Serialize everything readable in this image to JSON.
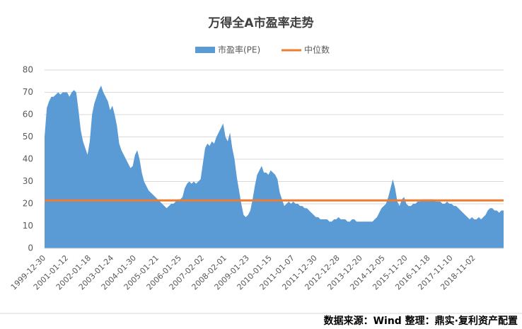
{
  "chart_data": {
    "type": "area",
    "title": "万得全A市盈率走势",
    "source": "数据来源：Wind  整理：鼎实·复利资产配置",
    "categories": [
      "1999-12-30",
      null,
      null,
      null,
      null,
      null,
      null,
      null,
      null,
      null,
      "2001-01-12",
      null,
      null,
      null,
      null,
      null,
      null,
      null,
      null,
      null,
      "2002-01-18",
      null,
      null,
      null,
      null,
      null,
      null,
      null,
      null,
      null,
      "2003-01-24",
      null,
      null,
      null,
      null,
      null,
      null,
      null,
      null,
      null,
      "2004-01-30",
      null,
      null,
      null,
      null,
      null,
      null,
      null,
      null,
      null,
      "2005-01-21",
      null,
      null,
      null,
      null,
      null,
      null,
      null,
      null,
      null,
      "2006-01-25",
      null,
      null,
      null,
      null,
      null,
      null,
      null,
      null,
      null,
      "2007-02-02",
      null,
      null,
      null,
      null,
      null,
      null,
      null,
      null,
      null,
      "2008-02-01",
      null,
      null,
      null,
      null,
      null,
      null,
      null,
      null,
      null,
      "2009-01-23",
      null,
      null,
      null,
      null,
      null,
      null,
      null,
      null,
      null,
      "2010-01-15",
      null,
      null,
      null,
      null,
      null,
      null,
      null,
      null,
      null,
      "2011-01-07",
      null,
      null,
      null,
      null,
      null,
      null,
      null,
      null,
      null,
      "2011-12-30",
      null,
      null,
      null,
      null,
      null,
      null,
      null,
      null,
      null,
      "2012-12-28",
      null,
      null,
      null,
      null,
      null,
      null,
      null,
      null,
      null,
      "2013-12-20",
      null,
      null,
      null,
      null,
      null,
      null,
      null,
      null,
      null,
      "2014-12-05",
      null,
      null,
      null,
      null,
      null,
      null,
      null,
      null,
      null,
      "2015-11-20",
      null,
      null,
      null,
      null,
      null,
      null,
      null,
      null,
      null,
      "2016-11-18",
      null,
      null,
      null,
      null,
      null,
      null,
      null,
      null,
      null,
      "2017-11-10",
      null,
      null,
      null,
      null,
      null,
      null,
      null,
      null,
      null,
      "2018-11-02",
      null,
      null,
      null,
      null,
      null,
      null,
      null,
      null,
      null,
      null,
      null,
      null,
      null
    ],
    "series": [
      {
        "name": "市盈率(PE)",
        "color": "#5b9bd5",
        "values": [
          50,
          63,
          66,
          68,
          68,
          69,
          70,
          69,
          70,
          70,
          70,
          68,
          70,
          71,
          70,
          62,
          53,
          48,
          45,
          42,
          48,
          60,
          65,
          68,
          71,
          73,
          70,
          68,
          66,
          62,
          64,
          60,
          55,
          47,
          44,
          42,
          40,
          38,
          36,
          37,
          42,
          44,
          40,
          34,
          30,
          28,
          26,
          25,
          24,
          23,
          22,
          21,
          20,
          19,
          18,
          19,
          20,
          20,
          21,
          22,
          22,
          23,
          27,
          29,
          30,
          29,
          30,
          29,
          30,
          31,
          38,
          45,
          47,
          46,
          48,
          47,
          50,
          52,
          54,
          56,
          50,
          48,
          52,
          45,
          40,
          32,
          26,
          20,
          15,
          14,
          15,
          17,
          22,
          28,
          33,
          35,
          37,
          34,
          34,
          33,
          35,
          34,
          33,
          31,
          25,
          22,
          19,
          20,
          21,
          20,
          21,
          20,
          20,
          19,
          19,
          18,
          18,
          17,
          16,
          15,
          14,
          14,
          13,
          13,
          13,
          13,
          12,
          12,
          13,
          13,
          14,
          13,
          13,
          13,
          12,
          12,
          13,
          13,
          12,
          12,
          12,
          12,
          12,
          12,
          12,
          12,
          13,
          14,
          16,
          18,
          19,
          20,
          23,
          27,
          31,
          27,
          21,
          19,
          22,
          23,
          20,
          19,
          19,
          20,
          20,
          21,
          21,
          22,
          22,
          22,
          22,
          22,
          22,
          21,
          21,
          21,
          20,
          20,
          21,
          20,
          20,
          19,
          19,
          18,
          17,
          16,
          15,
          14,
          13,
          14,
          13,
          13,
          14,
          13,
          14,
          15,
          17,
          18,
          18,
          17,
          17,
          16,
          17,
          17
        ]
      }
    ],
    "median": {
      "name": "中位数",
      "color": "#ed7d31",
      "value": 21.5
    },
    "ylim": [
      0,
      80
    ],
    "yticks": [
      0,
      10,
      20,
      30,
      40,
      50,
      60,
      70,
      80
    ],
    "grid": true
  }
}
